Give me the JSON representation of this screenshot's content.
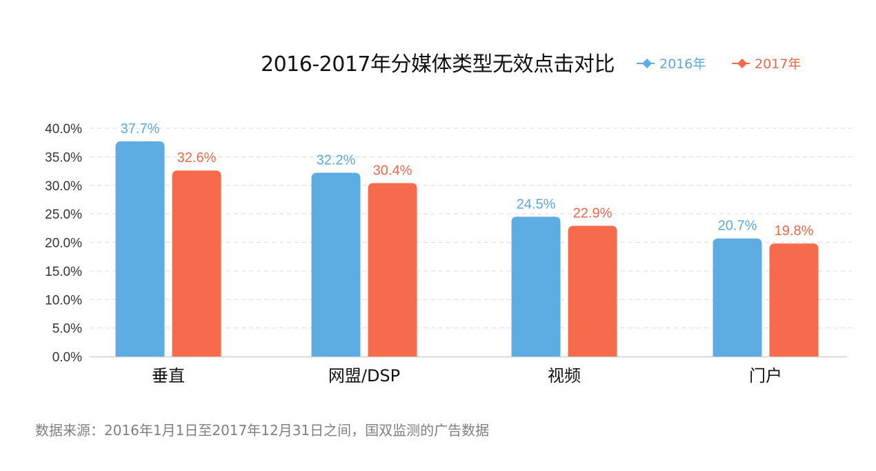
{
  "chart_data": {
    "type": "bar",
    "title": "2016-2017年分媒体类型无效点击对比",
    "categories": [
      "垂直",
      "网盟/DSP",
      "视频",
      "门户"
    ],
    "series": [
      {
        "name": "2016年",
        "color": "#5DADE2",
        "label_color": "#5BA9D8",
        "values": [
          37.7,
          32.2,
          24.5,
          20.7
        ],
        "labels": [
          "37.7%",
          "32.2%",
          "24.5%",
          "20.7%"
        ]
      },
      {
        "name": "2017年",
        "color": "#F76B4D",
        "label_color": "#E8684A",
        "values": [
          32.6,
          30.4,
          22.9,
          19.8
        ],
        "labels": [
          "32.6%",
          "30.4%",
          "22.9%",
          "19.8%"
        ]
      }
    ],
    "ylim": [
      0,
      40
    ],
    "yticks": [
      "0.0%",
      "5.0%",
      "10.0%",
      "15.0%",
      "20.0%",
      "25.0%",
      "30.0%",
      "35.0%",
      "40.0%"
    ],
    "ytick_values": [
      0,
      5,
      10,
      15,
      20,
      25,
      30,
      35,
      40
    ],
    "grid": "dashed-horizontal",
    "legend_position": "top-right",
    "xlabel": "",
    "ylabel": ""
  },
  "source_note": "数据来源：2016年1月1日至2017年12月31日之间，国双监测的广告数据"
}
